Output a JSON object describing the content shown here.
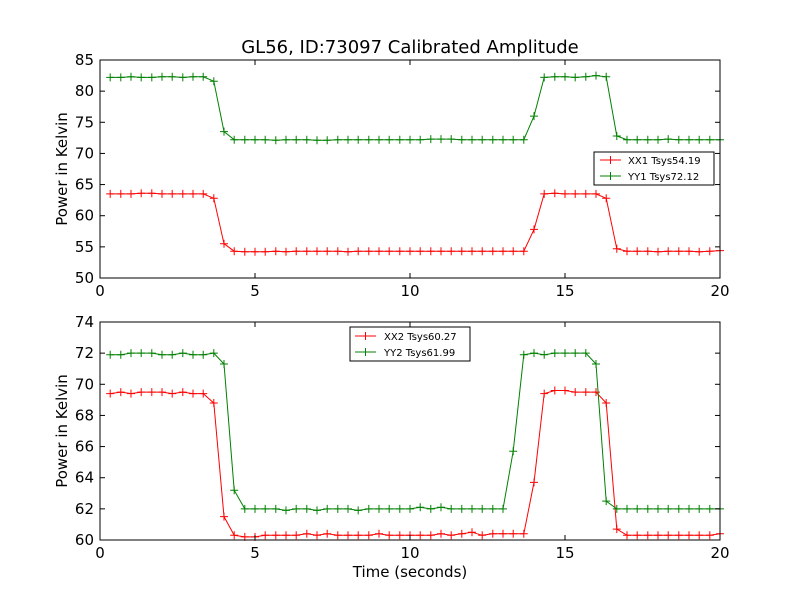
{
  "figure": {
    "title": "GL56, ID:73097 Calibrated Amplitude"
  },
  "chart_data": [
    {
      "type": "line",
      "xlabel": "",
      "ylabel": "Power in Kelvin",
      "xlim": [
        0,
        20
      ],
      "ylim": [
        50,
        85
      ],
      "xticks": [
        0,
        5,
        10,
        15,
        20
      ],
      "yticks": [
        50,
        55,
        60,
        65,
        70,
        75,
        80,
        85
      ],
      "grid": false,
      "legend_position": "center-right",
      "x": [
        0.33,
        0.67,
        1.0,
        1.33,
        1.67,
        2.0,
        2.33,
        2.67,
        3.0,
        3.33,
        3.67,
        4.0,
        4.33,
        4.67,
        5.0,
        5.33,
        5.67,
        6.0,
        6.33,
        6.67,
        7.0,
        7.33,
        7.67,
        8.0,
        8.33,
        8.67,
        9.0,
        9.33,
        9.67,
        10.0,
        10.33,
        10.67,
        11.0,
        11.33,
        11.67,
        12.0,
        12.33,
        12.67,
        13.0,
        13.33,
        13.67,
        14.0,
        14.33,
        14.67,
        15.0,
        15.33,
        15.67,
        16.0,
        16.33,
        16.67,
        17.0,
        17.33,
        17.67,
        18.0,
        18.33,
        18.67,
        19.0,
        19.33,
        19.67,
        20.0
      ],
      "series": [
        {
          "name": "XX1 Tsys54.19",
          "color": "#ff0000",
          "values": [
            63.5,
            63.5,
            63.5,
            63.6,
            63.6,
            63.5,
            63.5,
            63.5,
            63.5,
            63.5,
            62.8,
            55.5,
            54.3,
            54.2,
            54.2,
            54.2,
            54.3,
            54.2,
            54.3,
            54.3,
            54.3,
            54.3,
            54.3,
            54.2,
            54.3,
            54.3,
            54.3,
            54.3,
            54.3,
            54.3,
            54.3,
            54.3,
            54.3,
            54.3,
            54.3,
            54.3,
            54.3,
            54.3,
            54.3,
            54.3,
            54.3,
            57.8,
            63.5,
            63.6,
            63.5,
            63.5,
            63.5,
            63.5,
            62.8,
            54.7,
            54.3,
            54.3,
            54.3,
            54.2,
            54.3,
            54.3,
            54.3,
            54.2,
            54.3,
            54.4
          ]
        },
        {
          "name": "YY1 Tsys72.12",
          "color": "#008000",
          "values": [
            82.2,
            82.2,
            82.3,
            82.2,
            82.2,
            82.3,
            82.3,
            82.2,
            82.3,
            82.3,
            81.6,
            73.5,
            72.2,
            72.2,
            72.2,
            72.2,
            72.1,
            72.2,
            72.2,
            72.2,
            72.1,
            72.1,
            72.2,
            72.2,
            72.2,
            72.2,
            72.2,
            72.2,
            72.2,
            72.2,
            72.2,
            72.3,
            72.3,
            72.3,
            72.2,
            72.2,
            72.2,
            72.2,
            72.2,
            72.2,
            72.2,
            76.0,
            82.2,
            82.3,
            82.3,
            82.2,
            82.3,
            82.5,
            82.3,
            72.8,
            72.2,
            72.2,
            72.2,
            72.2,
            72.3,
            72.2,
            72.2,
            72.2,
            72.2,
            72.2
          ]
        }
      ]
    },
    {
      "type": "line",
      "xlabel": "Time (seconds)",
      "ylabel": "Power in Kelvin",
      "xlim": [
        0,
        20
      ],
      "ylim": [
        60,
        74
      ],
      "xticks": [
        0,
        5,
        10,
        15,
        20
      ],
      "yticks": [
        60,
        62,
        64,
        66,
        68,
        70,
        72,
        74
      ],
      "grid": false,
      "legend_position": "top-center",
      "x": [
        0.33,
        0.67,
        1.0,
        1.33,
        1.67,
        2.0,
        2.33,
        2.67,
        3.0,
        3.33,
        3.67,
        4.0,
        4.33,
        4.67,
        5.0,
        5.33,
        5.67,
        6.0,
        6.33,
        6.67,
        7.0,
        7.33,
        7.67,
        8.0,
        8.33,
        8.67,
        9.0,
        9.33,
        9.67,
        10.0,
        10.33,
        10.67,
        11.0,
        11.33,
        11.67,
        12.0,
        12.33,
        12.67,
        13.0,
        13.33,
        13.67,
        14.0,
        14.33,
        14.67,
        15.0,
        15.33,
        15.67,
        16.0,
        16.33,
        16.67,
        17.0,
        17.33,
        17.67,
        18.0,
        18.33,
        18.67,
        19.0,
        19.33,
        19.67,
        20.0
      ],
      "series": [
        {
          "name": "XX2 Tsys60.27",
          "color": "#ff0000",
          "values": [
            69.4,
            69.5,
            69.4,
            69.5,
            69.5,
            69.5,
            69.4,
            69.5,
            69.4,
            69.4,
            68.8,
            61.5,
            60.3,
            60.2,
            60.2,
            60.3,
            60.3,
            60.3,
            60.3,
            60.4,
            60.3,
            60.4,
            60.3,
            60.3,
            60.3,
            60.3,
            60.4,
            60.3,
            60.3,
            60.3,
            60.3,
            60.3,
            60.4,
            60.3,
            60.4,
            60.5,
            60.3,
            60.4,
            60.4,
            60.4,
            60.4,
            63.7,
            69.4,
            69.6,
            69.6,
            69.5,
            69.5,
            69.5,
            68.8,
            60.7,
            60.3,
            60.3,
            60.3,
            60.3,
            60.3,
            60.3,
            60.3,
            60.3,
            60.3,
            60.4
          ]
        },
        {
          "name": "YY2 Tsys61.99",
          "color": "#008000",
          "values": [
            71.9,
            71.9,
            72.0,
            72.0,
            72.0,
            71.9,
            71.9,
            72.0,
            71.9,
            71.9,
            72.0,
            71.3,
            63.2,
            62.0,
            62.0,
            62.0,
            62.0,
            61.9,
            62.0,
            62.0,
            61.9,
            62.0,
            62.0,
            62.0,
            61.9,
            62.0,
            62.0,
            62.0,
            62.0,
            62.0,
            62.1,
            62.0,
            62.1,
            62.0,
            62.0,
            62.0,
            62.0,
            62.0,
            62.0,
            65.7,
            71.9,
            72.0,
            71.9,
            72.0,
            72.0,
            72.0,
            72.0,
            71.3,
            62.5,
            62.0,
            62.0,
            62.0,
            62.0,
            62.0,
            62.0,
            62.0,
            62.0,
            62.0,
            62.0,
            62.0
          ]
        }
      ]
    }
  ]
}
